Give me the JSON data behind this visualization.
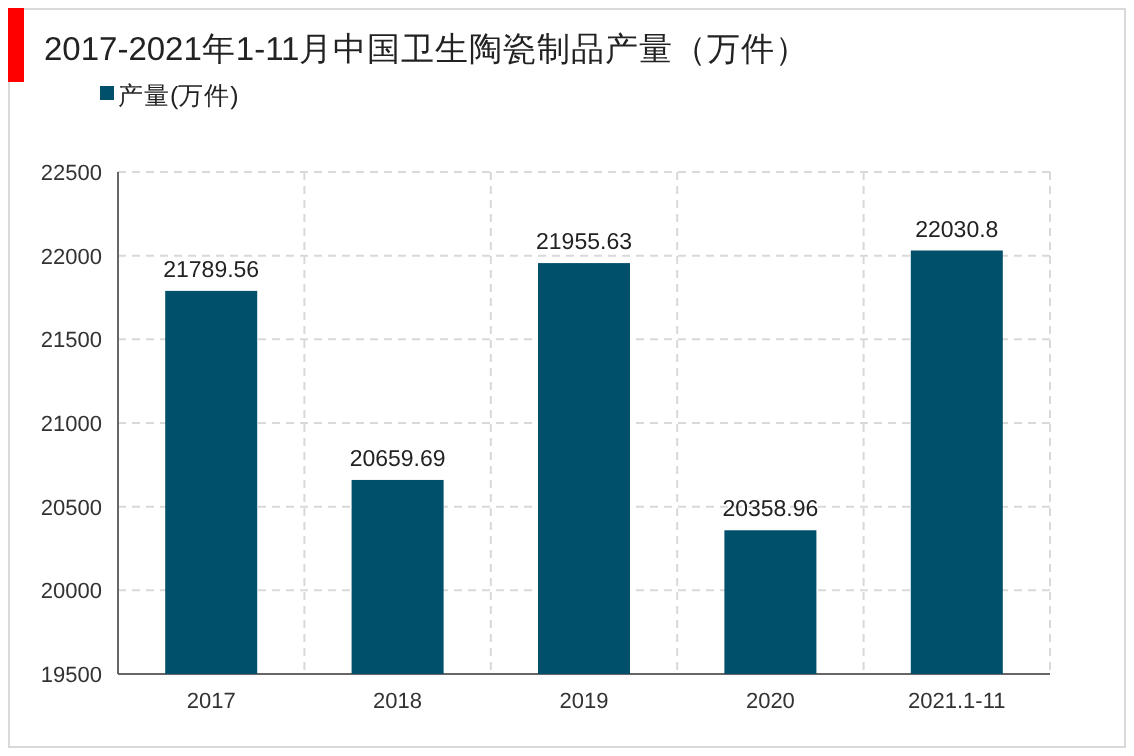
{
  "chart_data": {
    "type": "bar",
    "title": "2017-2021年1-11月中国卫生陶瓷制品产量（万件）",
    "categories": [
      "2017",
      "2018",
      "2019",
      "2020",
      "2021.1-11"
    ],
    "series": [
      {
        "name": "产量(万件)",
        "color": "#004f6b",
        "values": [
          21789.56,
          20659.69,
          21955.63,
          20358.96,
          22030.8
        ]
      }
    ],
    "ylim": [
      19500,
      22500
    ],
    "yticks": [
      19500,
      20000,
      20500,
      21000,
      21500,
      22000,
      22500
    ],
    "grid": true,
    "legend": "top left",
    "data_labels": true
  }
}
